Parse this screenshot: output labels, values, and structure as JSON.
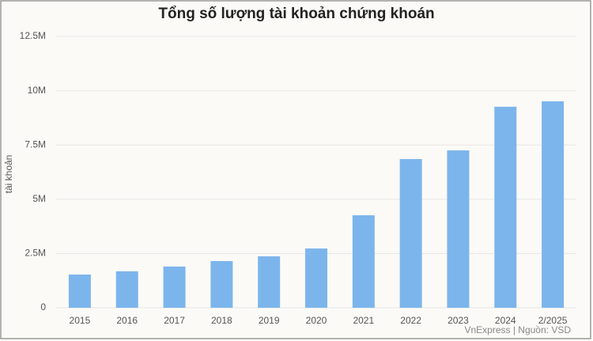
{
  "chart_data": {
    "type": "bar",
    "title": "Tổng số lượng tài khoản chứng khoán",
    "y_label": "tài khoản",
    "source": "VnExpress | Nguồn: VSD",
    "categories": [
      "2015",
      "2016",
      "2017",
      "2018",
      "2019",
      "2020",
      "2021",
      "2022",
      "2023",
      "2024",
      "2/2025"
    ],
    "values": [
      1530000,
      1680000,
      1900000,
      2150000,
      2370000,
      2730000,
      4260000,
      6850000,
      7250000,
      9260000,
      9510000
    ],
    "color": "#7cb5ec",
    "ylim": [
      0,
      12500000
    ],
    "yticks": [
      0,
      {
        "value": 2500000,
        "label": "2.5M"
      },
      {
        "value": 5000000,
        "label": "5M"
      },
      {
        "value": 7500000,
        "label": "7.5M"
      },
      {
        "value": 10000000,
        "label": "10M"
      },
      {
        "value": 12500000,
        "label": "12.5M"
      }
    ],
    "grid": true
  }
}
